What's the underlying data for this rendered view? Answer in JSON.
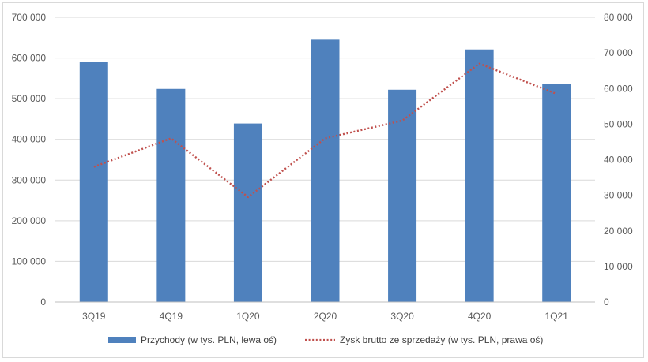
{
  "chart_data": {
    "type": "bar",
    "title": "",
    "categories": [
      "3Q19",
      "4Q19",
      "1Q20",
      "2Q20",
      "3Q20",
      "4Q20",
      "1Q21"
    ],
    "series": [
      {
        "name": "Przychody (w tys. PLN, lewa oś)",
        "kind": "bar",
        "axis": "left",
        "color": "#4f81bd",
        "values": [
          590000,
          524000,
          439000,
          645000,
          522000,
          621000,
          537000
        ]
      },
      {
        "name": "Zysk brutto ze sprzedaży (w tys. PLN, prawa oś)",
        "kind": "line",
        "line_style": "dotted",
        "axis": "right",
        "color": "#c0504d",
        "values": [
          38000,
          46000,
          29500,
          46000,
          51000,
          67000,
          58500
        ]
      }
    ],
    "y_left": {
      "ylim": [
        0,
        700000
      ],
      "tick_labels": [
        "0",
        "100 000",
        "200 000",
        "300 000",
        "400 000",
        "500 000",
        "600 000",
        "700 000"
      ]
    },
    "y_right": {
      "ylim": [
        0,
        80000
      ],
      "tick_labels": [
        "0",
        "10 000",
        "20 000",
        "30 000",
        "40 000",
        "50 000",
        "60 000",
        "70 000",
        "80 000"
      ]
    },
    "grid": true,
    "legend": "bottom-center"
  }
}
